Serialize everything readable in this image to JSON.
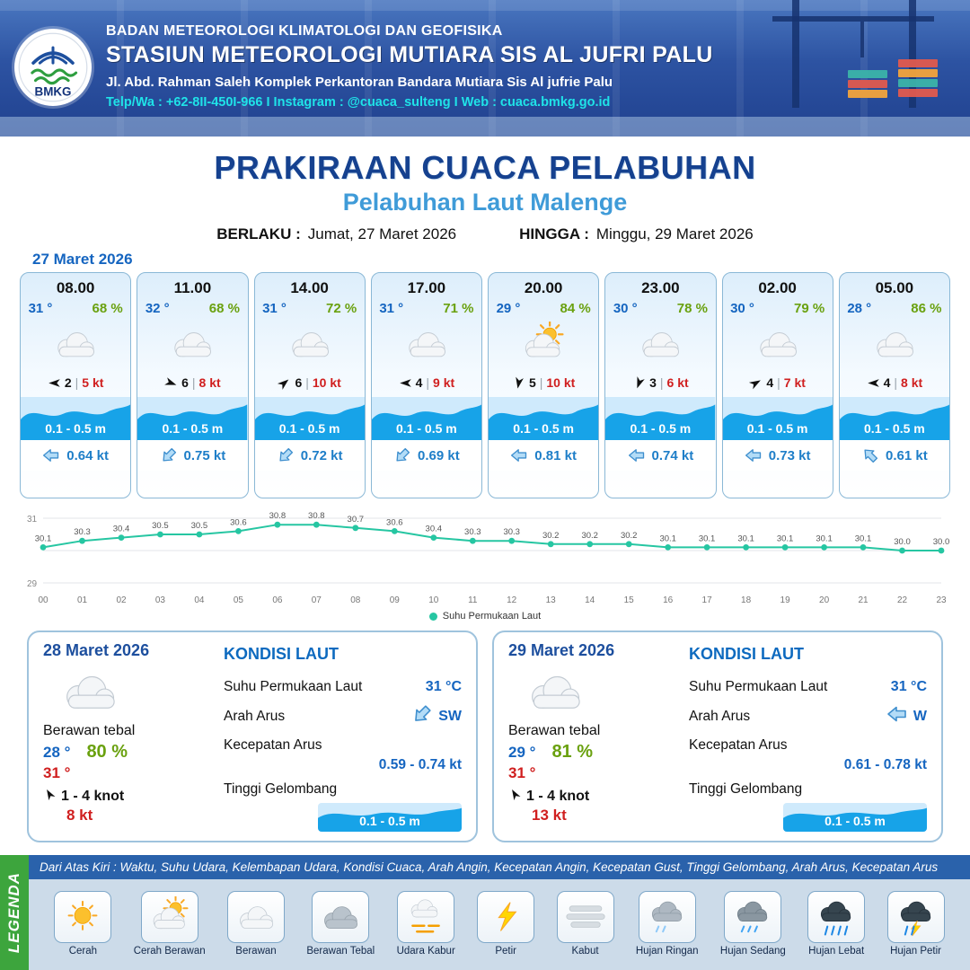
{
  "colors": {
    "navy": "#15418f",
    "light_blue": "#3f9bd8",
    "temp_blue": "#1565c0",
    "humidity_green": "#6aa10f",
    "alert_red": "#d01f1f",
    "wave_blue": "#17a3e8",
    "sst_teal": "#26c6a2",
    "contact_cyan": "#1fe3e8",
    "legenda_green": "#3da53d"
  },
  "header": {
    "logo_text": "BMKG",
    "agency": "BADAN METEOROLOGI KLIMATOLOGI DAN GEOFISIKA",
    "station": "STASIUN METEOROLOGI MUTIARA SIS AL JUFRI PALU",
    "address": "Jl. Abd. Rahman Saleh Komplek Perkantoran Bandara Mutiara Sis Al jufrie Palu",
    "contact": "Telp/Wa : +62-8II-450I-966  I  Instagram : @cuaca_sulteng  I  Web : cuaca.bmkg.go.id"
  },
  "title": {
    "main": "PRAKIRAAN CUACA PELABUHAN",
    "subtitle": "Pelabuhan Laut Malenge",
    "berlaku_label": "BERLAKU :",
    "berlaku_value": "Jumat, 27 Maret 2026",
    "hingga_label": "HINGGA :",
    "hingga_value": "Minggu, 29 Maret 2026"
  },
  "day1": {
    "date": "27 Maret 2026",
    "cards": [
      {
        "time": "08.00",
        "temp": "31 °",
        "rh": "68 %",
        "icon": "berawan",
        "wind_dir_deg": 180,
        "wind_val": "2",
        "wind_speed": "5 kt",
        "wave": "0.1 - 0.5 m",
        "current_dir_deg": 180,
        "current": "0.64 kt"
      },
      {
        "time": "11.00",
        "temp": "32 °",
        "rh": "68 %",
        "icon": "berawan",
        "wind_dir_deg": 20,
        "wind_val": "6",
        "wind_speed": "8 kt",
        "wave": "0.1 - 0.5 m",
        "current_dir_deg": 135,
        "current": "0.75 kt"
      },
      {
        "time": "14.00",
        "temp": "31 °",
        "rh": "72 %",
        "icon": "berawan",
        "wind_dir_deg": 320,
        "wind_val": "6",
        "wind_speed": "10 kt",
        "wave": "0.1 - 0.5 m",
        "current_dir_deg": 135,
        "current": "0.72 kt"
      },
      {
        "time": "17.00",
        "temp": "31 °",
        "rh": "71 %",
        "icon": "berawan",
        "wind_dir_deg": 180,
        "wind_val": "4",
        "wind_speed": "9 kt",
        "wave": "0.1 - 0.5 m",
        "current_dir_deg": 135,
        "current": "0.69 kt"
      },
      {
        "time": "20.00",
        "temp": "29 °",
        "rh": "84 %",
        "icon": "cerah-berawan",
        "wind_dir_deg": 100,
        "wind_val": "5",
        "wind_speed": "10 kt",
        "wave": "0.1 - 0.5 m",
        "current_dir_deg": 180,
        "current": "0.81 kt"
      },
      {
        "time": "23.00",
        "temp": "30 °",
        "rh": "78 %",
        "icon": "berawan",
        "wind_dir_deg": 110,
        "wind_val": "3",
        "wind_speed": "6 kt",
        "wave": "0.1 - 0.5 m",
        "current_dir_deg": 180,
        "current": "0.74 kt"
      },
      {
        "time": "02.00",
        "temp": "30 °",
        "rh": "79 %",
        "icon": "berawan",
        "wind_dir_deg": 330,
        "wind_val": "4",
        "wind_speed": "7 kt",
        "wave": "0.1 - 0.5 m",
        "current_dir_deg": 180,
        "current": "0.73 kt"
      },
      {
        "time": "05.00",
        "temp": "28 °",
        "rh": "86 %",
        "icon": "berawan",
        "wind_dir_deg": 180,
        "wind_val": "4",
        "wind_speed": "8 kt",
        "wave": "0.1 - 0.5 m",
        "current_dir_deg": 225,
        "current": "0.61 kt"
      }
    ]
  },
  "chart_data": {
    "type": "line",
    "series_name": "Suhu Permukaan Laut",
    "x": [
      "00",
      "01",
      "02",
      "03",
      "04",
      "05",
      "06",
      "07",
      "08",
      "09",
      "10",
      "11",
      "12",
      "13",
      "14",
      "15",
      "16",
      "17",
      "18",
      "19",
      "20",
      "21",
      "22",
      "23"
    ],
    "values": [
      30.1,
      30.3,
      30.4,
      30.5,
      30.5,
      30.6,
      30.8,
      30.8,
      30.7,
      30.6,
      30.4,
      30.3,
      30.3,
      30.2,
      30.2,
      30.2,
      30.1,
      30.1,
      30.1,
      30.1,
      30.1,
      30.1,
      30.0,
      30.0
    ],
    "ylim": [
      29,
      31
    ],
    "yticks": [
      "31",
      "29"
    ],
    "line_color": "#26c6a2",
    "grid": true,
    "legend_position": "bottom"
  },
  "days": [
    {
      "date": "28 Maret 2026",
      "icon": "berawan",
      "condition": "Berawan tebal",
      "temp_min": "28 °",
      "humidity": "80 %",
      "temp_max": "31 °",
      "wind_dir_deg": 240,
      "wind_range": "1 - 4 knot",
      "gust": "8 kt",
      "kondisi_laut": {
        "title": "KONDISI LAUT",
        "sst_label": "Suhu Permukaan Laut",
        "sst_value": "31 °C",
        "arus_label": "Arah Arus",
        "arus_dir_label": "SW",
        "arus_dir_deg": 135,
        "kecepatan_label": "Kecepatan Arus",
        "kecepatan_value": "0.59 - 0.74 kt",
        "gelombang_label": "Tinggi Gelombang",
        "gelombang_value": "0.1 - 0.5 m"
      }
    },
    {
      "date": "29 Maret 2026",
      "icon": "berawan",
      "condition": "Berawan tebal",
      "temp_min": "29 °",
      "humidity": "81 %",
      "temp_max": "31 °",
      "wind_dir_deg": 240,
      "wind_range": "1 - 4 knot",
      "gust": "13 kt",
      "kondisi_laut": {
        "title": "KONDISI LAUT",
        "sst_label": "Suhu Permukaan Laut",
        "sst_value": "31 °C",
        "arus_label": "Arah Arus",
        "arus_dir_label": "W",
        "arus_dir_deg": 180,
        "kecepatan_label": "Kecepatan Arus",
        "kecepatan_value": "0.61 - 0.78 kt",
        "gelombang_label": "Tinggi Gelombang",
        "gelombang_value": "0.1 - 0.5 m"
      }
    }
  ],
  "legend": {
    "title": "LEGENDA",
    "description": "Dari Atas Kiri : Waktu, Suhu Udara, Kelembapan Udara, Kondisi Cuaca, Arah Angin, Kecepatan Angin, Kecepatan Gust, Tinggi Gelombang, Arah Arus, Kecepatan Arus",
    "items": [
      {
        "label": "Cerah",
        "icon": "cerah"
      },
      {
        "label": "Cerah Berawan",
        "icon": "cerah-berawan"
      },
      {
        "label": "Berawan",
        "icon": "berawan"
      },
      {
        "label": "Berawan Tebal",
        "icon": "berawan-tebal"
      },
      {
        "label": "Udara Kabur",
        "icon": "udara-kabur"
      },
      {
        "label": "Petir",
        "icon": "petir"
      },
      {
        "label": "Kabut",
        "icon": "kabut"
      },
      {
        "label": "Hujan Ringan",
        "icon": "hujan-ringan"
      },
      {
        "label": "Hujan Sedang",
        "icon": "hujan-sedang"
      },
      {
        "label": "Hujan Lebat",
        "icon": "hujan-lebat"
      },
      {
        "label": "Hujan Petir",
        "icon": "hujan-petir"
      }
    ]
  }
}
